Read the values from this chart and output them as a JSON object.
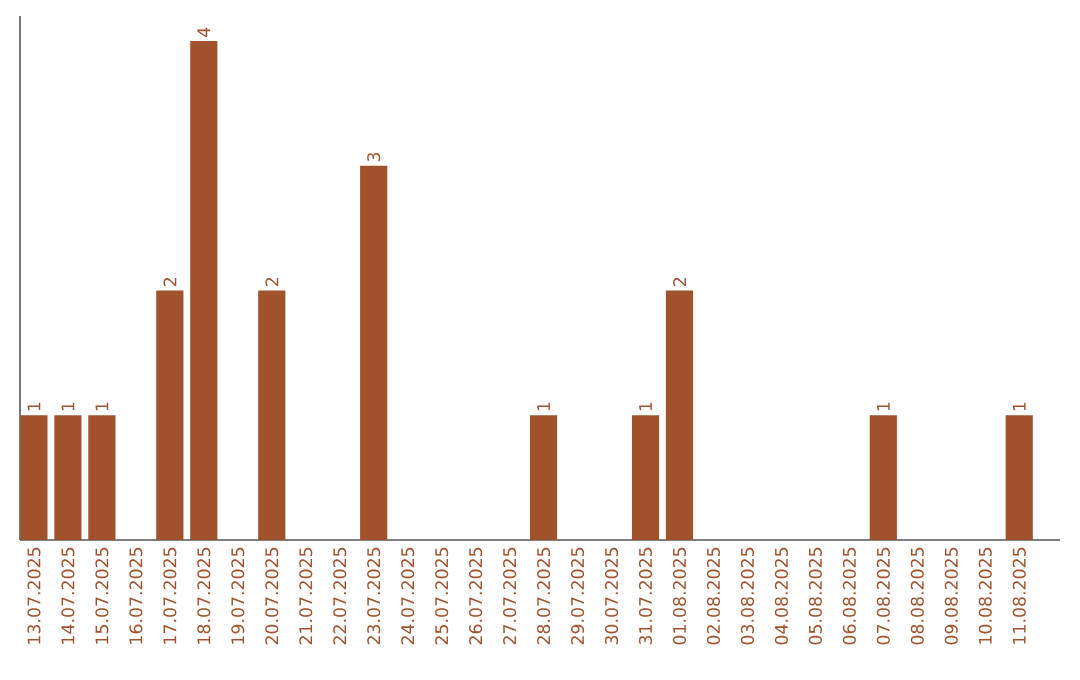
{
  "chart_data": {
    "type": "bar",
    "categories": [
      "13.07.2025",
      "14.07.2025",
      "15.07.2025",
      "16.07.2025",
      "17.07.2025",
      "18.07.2025",
      "19.07.2025",
      "20.07.2025",
      "21.07.2025",
      "22.07.2025",
      "23.07.2025",
      "24.07.2025",
      "25.07.2025",
      "26.07.2025",
      "27.07.2025",
      "28.07.2025",
      "29.07.2025",
      "30.07.2025",
      "31.07.2025",
      "01.08.2025",
      "02.08.2025",
      "03.08.2025",
      "04.08.2025",
      "05.08.2025",
      "06.08.2025",
      "07.08.2025",
      "08.08.2025",
      "09.08.2025",
      "10.08.2025",
      "11.08.2025"
    ],
    "values": [
      1,
      1,
      1,
      0,
      2,
      4,
      0,
      2,
      0,
      0,
      3,
      0,
      0,
      0,
      0,
      1,
      0,
      0,
      1,
      2,
      0,
      0,
      0,
      0,
      0,
      1,
      0,
      0,
      0,
      1
    ],
    "value_labels": [
      "1",
      "1",
      "1",
      null,
      "2",
      "4",
      null,
      "2",
      null,
      null,
      "3",
      null,
      null,
      null,
      null,
      "1",
      null,
      null,
      "1",
      "2",
      null,
      null,
      null,
      null,
      null,
      "1",
      null,
      null,
      null,
      "1"
    ],
    "color": "#a0522d",
    "ylim": [
      0,
      4.2
    ],
    "tick_labels": "x"
  }
}
